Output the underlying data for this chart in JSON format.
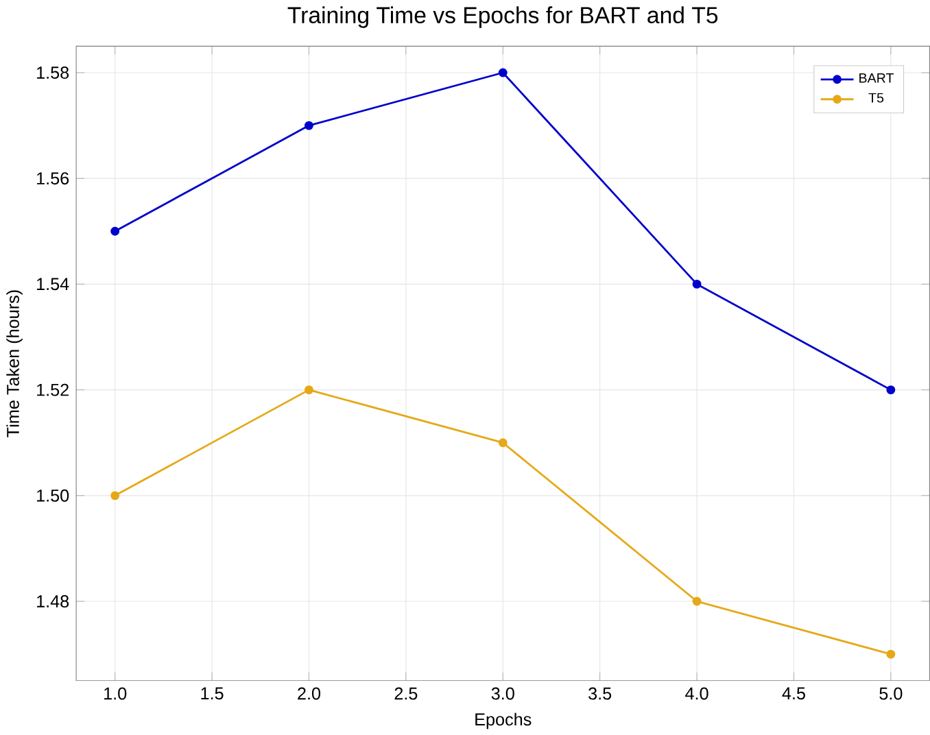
{
  "chart_data": {
    "type": "line",
    "title": "Training Time vs Epochs for BART and T5",
    "xlabel": "Epochs",
    "ylabel": "Time Taken (hours)",
    "x": [
      1,
      2,
      3,
      4,
      5
    ],
    "series": [
      {
        "name": "BART",
        "color": "#0000cc",
        "values": [
          1.55,
          1.57,
          1.58,
          1.54,
          1.52
        ]
      },
      {
        "name": "T5",
        "color": "#e6a817",
        "values": [
          1.5,
          1.52,
          1.51,
          1.48,
          1.47
        ]
      }
    ],
    "xlim": [
      0.8,
      5.2
    ],
    "xticks": [
      {
        "value": 1,
        "label": "1.0"
      },
      1.5,
      {
        "value": 2,
        "label": "2.0"
      },
      2.5,
      {
        "value": 3,
        "label": "3.0"
      },
      3.5,
      {
        "value": 4,
        "label": "4.0"
      },
      4.5,
      {
        "value": 5,
        "label": "5.0"
      }
    ],
    "ylim": [
      1.465,
      1.585
    ],
    "yticks": [
      1.48,
      {
        "value": 1.5,
        "label": "1.50"
      },
      1.52,
      1.54,
      1.56,
      1.58
    ],
    "grid": true,
    "legend": "top right",
    "marker": "circle",
    "line_style": "solid"
  }
}
